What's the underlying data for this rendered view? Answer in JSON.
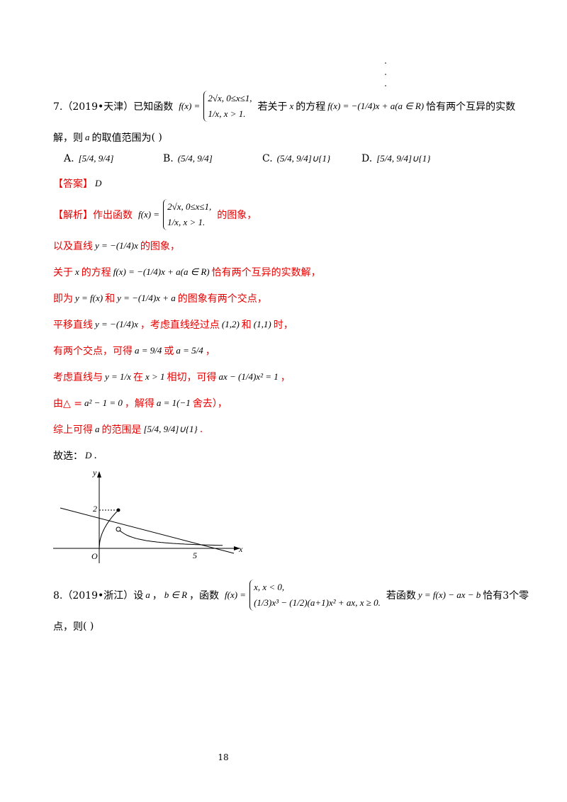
{
  "question7": {
    "lines": [
      [
        {
          "t": "7.（2019•天津）已知函数"
        },
        {
          "lead": "f(x) =",
          "cases": [
            "2√x, 0≤x≤1,",
            "1/x, x > 1."
          ]
        },
        {
          "t": "若关于"
        },
        {
          "m": "x"
        },
        {
          "t": "的方程"
        },
        {
          "m": "f(x) = −(1/4)x + a(a ∈ R)"
        },
        {
          "t": "恰有两个互异的实数"
        }
      ],
      [
        {
          "t": "解，则"
        },
        {
          "m": "a"
        },
        {
          "t": "的取值范围为"
        },
        {
          "t": "(    )"
        }
      ]
    ],
    "options": [
      {
        "label": "A.",
        "m": "[5/4, 9/4]"
      },
      {
        "label": "B.",
        "m": "(5/4, 9/4]"
      },
      {
        "label": "C.",
        "m": "(5/4, 9/4]∪{1}"
      },
      {
        "label": "D.",
        "m": "[5/4, 9/4]∪{1}"
      }
    ]
  },
  "solution": {
    "lines": [
      [
        {
          "t": "【答案】"
        },
        {
          "m": "D"
        }
      ],
      [
        {
          "t": "【解析】作出函数"
        },
        {
          "lead": "f(x) =",
          "cases": [
            "2√x, 0≤x≤1,",
            "1/x, x > 1."
          ]
        },
        {
          "t": "的图象，"
        }
      ],
      [
        {
          "t": "以及直线"
        },
        {
          "m": "y = −(1/4)x"
        },
        {
          "t": "的图象，"
        }
      ],
      [
        {
          "t": "关于"
        },
        {
          "m": "x"
        },
        {
          "t": "的方程"
        },
        {
          "m": "f(x) = −(1/4)x + a(a ∈ R)"
        },
        {
          "t": "恰有两个互异的实数解，"
        }
      ],
      [
        {
          "t": "即为"
        },
        {
          "m": "y = f(x)"
        },
        {
          "t": "和"
        },
        {
          "m": "y = −(1/4)x + a"
        },
        {
          "t": "的图象有两个交点，"
        }
      ],
      [
        {
          "t": "平移直线"
        },
        {
          "m": "y = −(1/4)x"
        },
        {
          "t": "，考虑直线经过点"
        },
        {
          "m": "(1,2)"
        },
        {
          "t": "和"
        },
        {
          "m": "(1,1)"
        },
        {
          "t": "时，"
        }
      ],
      [
        {
          "t": "有两个交点，可得"
        },
        {
          "m": "a = 9/4"
        },
        {
          "t": "或"
        },
        {
          "m": "a = 5/4"
        },
        {
          "t": "，"
        }
      ],
      [
        {
          "t": "考虑直线与"
        },
        {
          "m": "y = 1/x"
        },
        {
          "t": "在"
        },
        {
          "m": "x > 1"
        },
        {
          "t": "相切，可得"
        },
        {
          "m": "ax − (1/4)x² = 1"
        },
        {
          "t": "，"
        }
      ],
      [
        {
          "t": "由△ ="
        },
        {
          "m": "a² − 1 = 0"
        },
        {
          "t": "，解得"
        },
        {
          "m": "a = 1(−1"
        },
        {
          "t": "舍去），"
        }
      ],
      [
        {
          "t": "综上可得"
        },
        {
          "m": "a"
        },
        {
          "t": "的范围是"
        },
        {
          "m": "[5/4, 9/4]∪{1}"
        },
        {
          "t": "."
        }
      ]
    ],
    "conclusion": [
      {
        "t": "故选："
      },
      {
        "m": "D"
      },
      {
        "t": "."
      }
    ]
  },
  "graph": {
    "y_axis": "y",
    "x_axis": "x",
    "origin": "O",
    "y_mark": "2",
    "x_mark": "5"
  },
  "question8": {
    "lines": [
      [
        {
          "t": "8.（2019•浙江）设"
        },
        {
          "m": "a"
        },
        {
          "t": "，"
        },
        {
          "m": "b ∈ R"
        },
        {
          "t": "，函数"
        },
        {
          "lead": "f(x) =",
          "cases": [
            "x, x < 0,",
            "(1/3)x³ − (1/2)(a+1)x² + ax, x ≥ 0."
          ]
        },
        {
          "t": "若函数"
        },
        {
          "m": "y = f(x) − ax − b"
        },
        {
          "t": "恰有3个零"
        }
      ],
      [
        {
          "t": "点，则"
        },
        {
          "t": "(    )"
        }
      ]
    ]
  },
  "page_number": "18"
}
